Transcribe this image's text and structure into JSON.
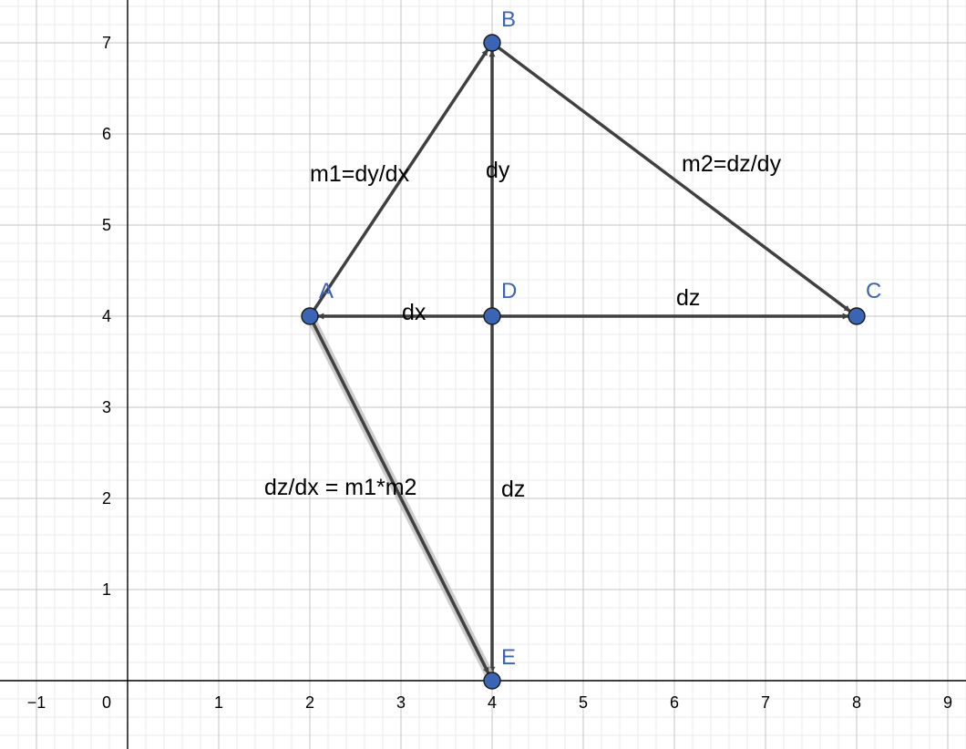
{
  "grid": {
    "x_range": [
      -1.4,
      9.2
    ],
    "y_range": [
      -0.75,
      7.47
    ],
    "x_ticks": [
      -1,
      1,
      2,
      3,
      4,
      5,
      6,
      7,
      8,
      9
    ],
    "y_ticks": [
      1,
      2,
      3,
      4,
      5,
      6,
      7
    ],
    "origin_label": "0",
    "minor_step": 0.2
  },
  "colors": {
    "point_fill": "#3c64b4",
    "point_label": "#3c64b4",
    "vector": "#404040",
    "highlight": "#bfbfbf",
    "minor_grid": "#ebebeb",
    "major_grid": "#c4c4c4",
    "axis": "#000000"
  },
  "points": [
    {
      "id": "A",
      "label": "A",
      "x": 2,
      "y": 4
    },
    {
      "id": "B",
      "label": "B",
      "x": 4,
      "y": 7
    },
    {
      "id": "C",
      "label": "C",
      "x": 8,
      "y": 4
    },
    {
      "id": "D",
      "label": "D",
      "x": 4,
      "y": 4
    },
    {
      "id": "E",
      "label": "E",
      "x": 4,
      "y": 0
    }
  ],
  "vectors": [
    {
      "id": "ab",
      "from": "A",
      "to": "B"
    },
    {
      "id": "bc",
      "from": "B",
      "to": "C"
    },
    {
      "id": "db",
      "from": "D",
      "to": "B"
    },
    {
      "id": "da",
      "from": "D",
      "to": "A"
    },
    {
      "id": "dc",
      "from": "D",
      "to": "C"
    },
    {
      "id": "de",
      "from": "D",
      "to": "E"
    },
    {
      "id": "ae",
      "from": "A",
      "to": "E",
      "highlight": true
    }
  ],
  "labels": {
    "m1": "m1=dy/dx",
    "m2": "m2=dz/dy",
    "dy": "dy",
    "dx": "dx",
    "dz_horizontal": "dz",
    "dz_vertical": "dz",
    "dzdx": "dz/dx = m1*m2"
  }
}
